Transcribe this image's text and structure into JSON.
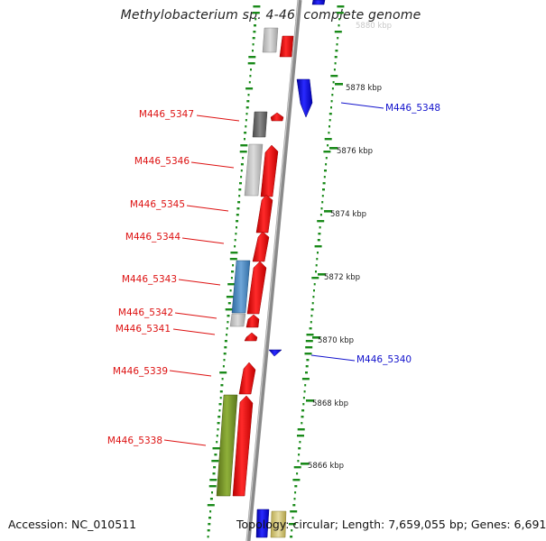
{
  "title": "Methylobacterium sp. 4-46, complete genome",
  "footer": {
    "accession": "Accession: NC_010511",
    "stats": "Topology: circular; Length: 7,659,055 bp; Genes: 6,691"
  },
  "colors": {
    "forward_gene": "#ee1111",
    "reverse_gene": "#1a1aee",
    "backbone": "#8a8a8a",
    "gc_ticks": "#1a8a1a",
    "label_forward": "#dd1111",
    "label_reverse": "#1111cc"
  },
  "scale_labels": [
    "5880 kbp",
    "5878 kbp",
    "5876 kbp",
    "5874 kbp",
    "5872 kbp",
    "5870 kbp",
    "5868 kbp",
    "5866 kbp"
  ],
  "gene_labels": [
    {
      "name": "M446_5348",
      "strand": "reverse"
    },
    {
      "name": "M446_5347",
      "strand": "forward"
    },
    {
      "name": "M446_5346",
      "strand": "forward"
    },
    {
      "name": "M446_5345",
      "strand": "forward"
    },
    {
      "name": "M446_5344",
      "strand": "forward"
    },
    {
      "name": "M446_5343",
      "strand": "forward"
    },
    {
      "name": "M446_5342",
      "strand": "forward"
    },
    {
      "name": "M446_5341",
      "strand": "forward"
    },
    {
      "name": "M446_5340",
      "strand": "reverse"
    },
    {
      "name": "M446_5339",
      "strand": "forward"
    },
    {
      "name": "M446_5338",
      "strand": "forward"
    }
  ]
}
